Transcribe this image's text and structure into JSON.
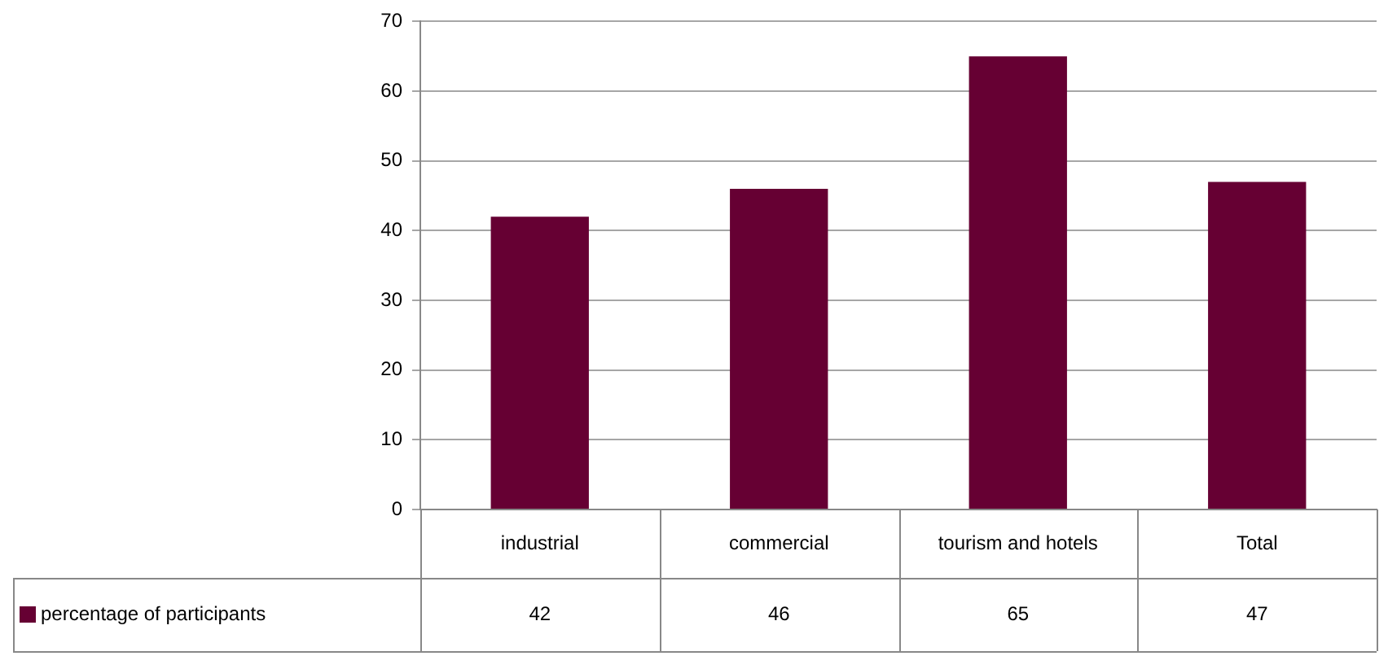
{
  "chart_data": {
    "type": "bar",
    "categories": [
      "industrial",
      "commercial",
      "tourism and hotels",
      "Total"
    ],
    "series": [
      {
        "name": "percentage of participants",
        "color": "#660033",
        "values": [
          42,
          46,
          65,
          47
        ]
      }
    ],
    "ylim": [
      0,
      70
    ],
    "yticks": [
      0,
      10,
      20,
      30,
      40,
      50,
      60,
      70
    ],
    "grid": "y",
    "legend": "bottom",
    "data_labels": true
  }
}
